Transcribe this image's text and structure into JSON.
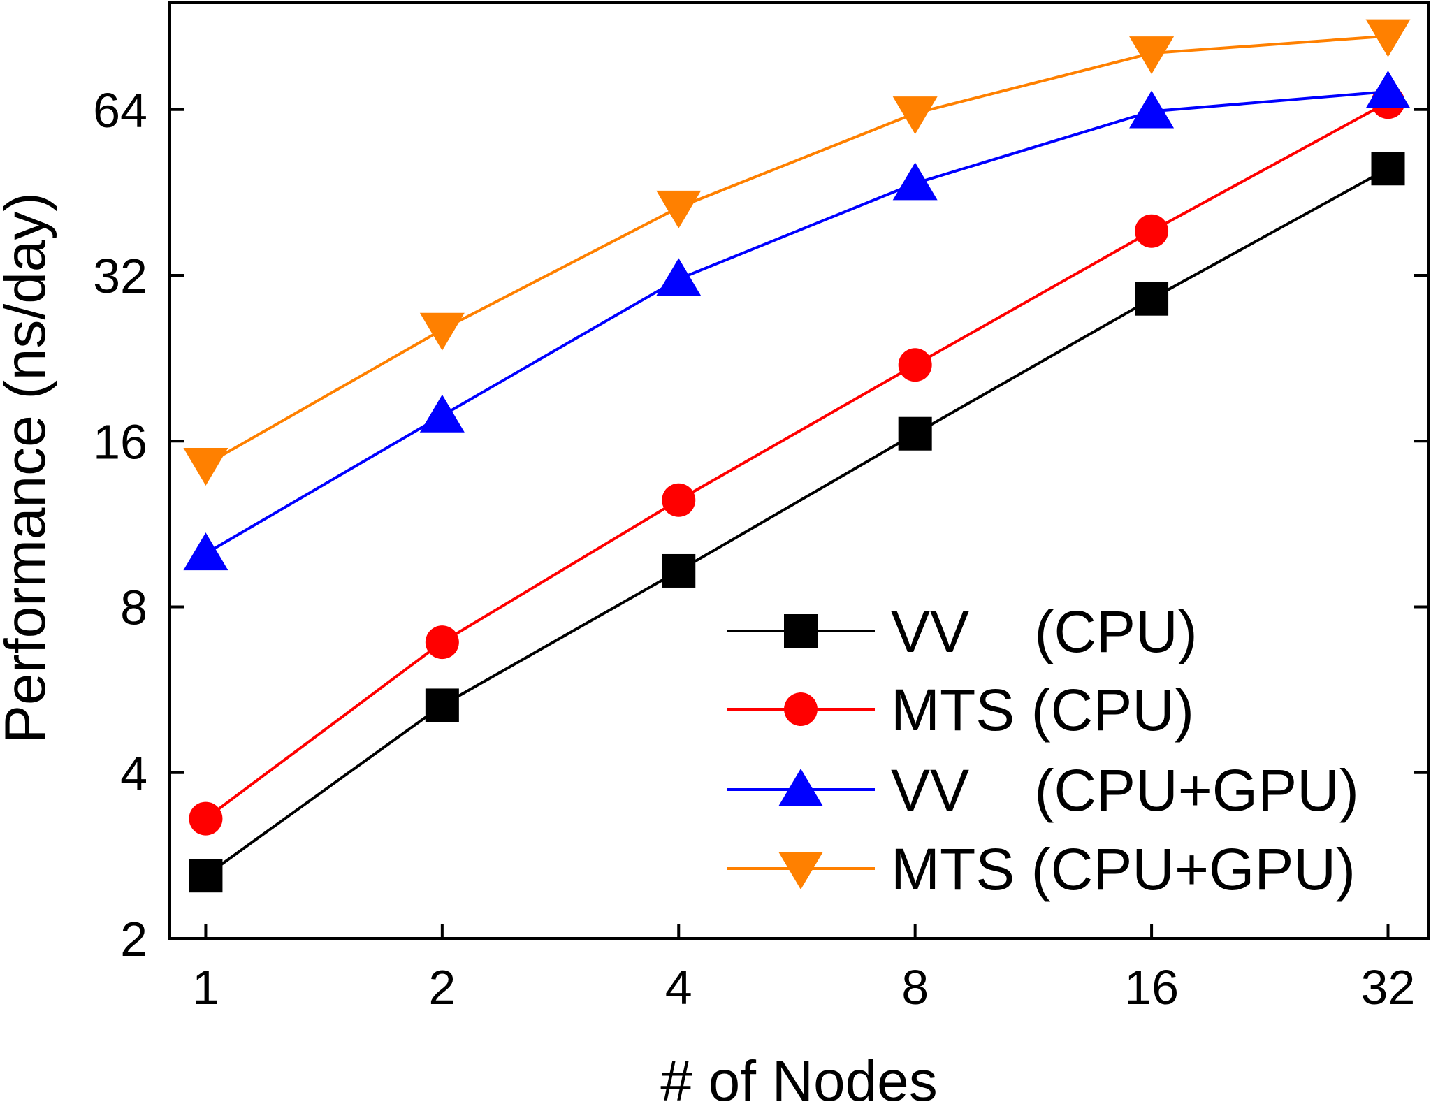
{
  "chart_data": {
    "type": "line",
    "xlabel": "# of Nodes",
    "ylabel": "Performance (ns/day)",
    "x_scale": "log2",
    "y_scale": "log2",
    "xlim": [
      0.9,
      36
    ],
    "ylim": [
      2,
      100
    ],
    "x": [
      1,
      2,
      4,
      8,
      16,
      32
    ],
    "x_tick_labels": [
      "1",
      "2",
      "4",
      "8",
      "16",
      "32"
    ],
    "y_ticks": [
      2,
      4,
      8,
      16,
      32,
      64
    ],
    "y_tick_labels": [
      "2",
      "4",
      "8",
      "16",
      "32",
      "64"
    ],
    "legend_position": "bottom-right",
    "series": [
      {
        "name": "VV    (CPU)",
        "legend_label": "VV    (CPU)",
        "color": "#000000",
        "marker": "square",
        "values": [
          2.6,
          5.3,
          9.3,
          16.5,
          29,
          50
        ]
      },
      {
        "name": "MTS (CPU)",
        "legend_label": "MTS (CPU)",
        "color": "#ff0000",
        "marker": "circle",
        "values": [
          3.3,
          6.9,
          12.5,
          22,
          38.5,
          66
        ]
      },
      {
        "name": "VV    (CPU+GPU)",
        "legend_label": "VV    (CPU+GPU)",
        "color": "#0000ff",
        "marker": "triangle-up",
        "values": [
          10,
          17.8,
          31.5,
          47,
          63.5,
          69
        ]
      },
      {
        "name": "MTS (CPU+GPU)",
        "legend_label": "MTS (CPU+GPU)",
        "color": "#ff8000",
        "marker": "triangle-down",
        "values": [
          14.5,
          25.5,
          42.5,
          63,
          81,
          87
        ]
      }
    ]
  }
}
